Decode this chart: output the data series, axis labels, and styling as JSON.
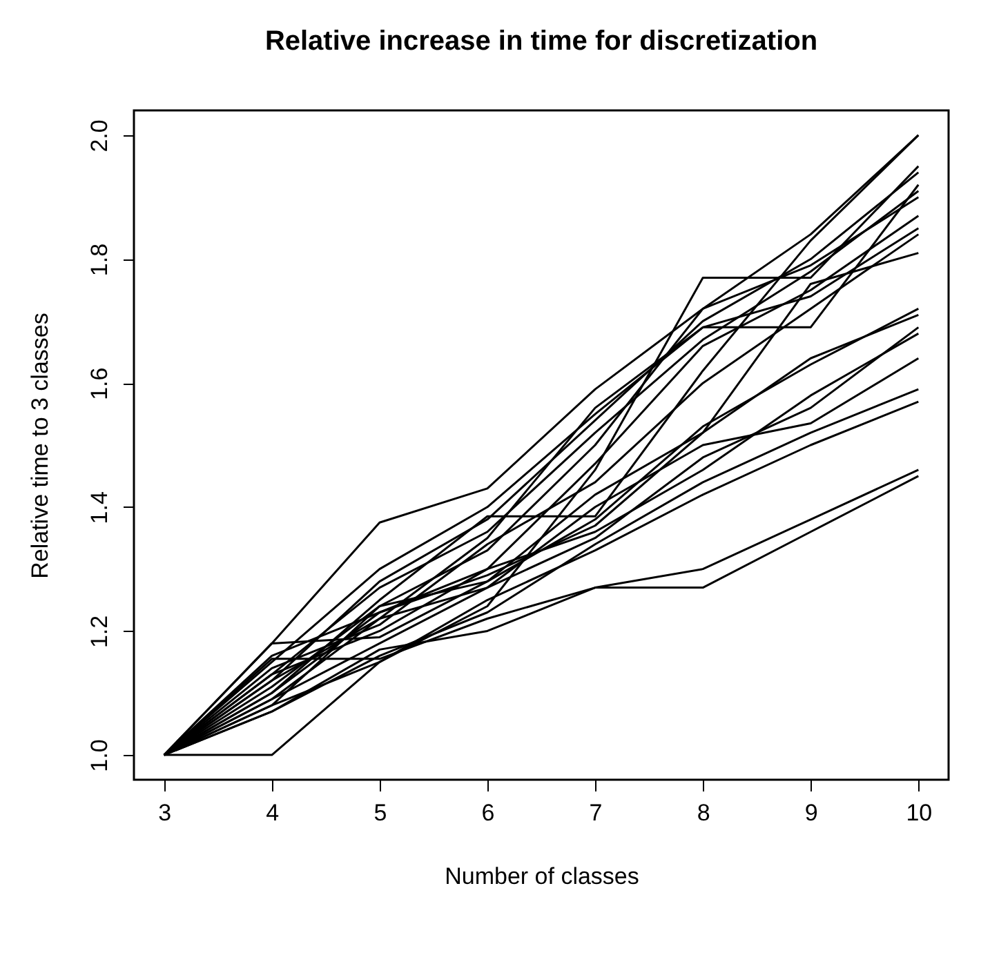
{
  "chart_data": {
    "type": "line",
    "title": "Relative increase in time for discretization",
    "xlabel": "Number of classes",
    "ylabel": "Relative time to 3 classes",
    "x": [
      3,
      4,
      5,
      6,
      7,
      8,
      9,
      10
    ],
    "xlim": [
      2.72,
      10.28
    ],
    "xticks": [
      3,
      4,
      5,
      6,
      7,
      8,
      9,
      10
    ],
    "ylim": [
      0.96,
      2.04
    ],
    "yticks": [
      {
        "value": 1,
        "label": "1.0"
      },
      {
        "value": 1.2,
        "label": "1.2"
      },
      {
        "value": 1.4,
        "label": "1.4"
      },
      {
        "value": 1.6,
        "label": "1.6"
      },
      {
        "value": 1.8,
        "label": "1.8"
      },
      {
        "value": 2,
        "label": "2.0"
      }
    ],
    "grid": false,
    "legend": false,
    "marker": "none",
    "line_style": "solid",
    "series": [
      {
        "color": "#000000",
        "values": [
          1,
          1.18,
          1.375,
          1.43,
          1.59,
          1.72,
          1.84,
          2.0
        ]
      },
      {
        "color": "#000000",
        "values": [
          1,
          1.0,
          1.15,
          1.24,
          1.46,
          1.77,
          1.77,
          1.95
        ]
      },
      {
        "color": "#000000",
        "values": [
          1,
          1.15,
          1.3,
          1.4,
          1.55,
          1.69,
          1.69,
          1.92
        ]
      },
      {
        "color": "#000000",
        "values": [
          1,
          1.12,
          1.28,
          1.38,
          1.54,
          1.7,
          1.8,
          1.94
        ]
      },
      {
        "color": "#000000",
        "values": [
          1,
          1.1,
          1.25,
          1.385,
          1.385,
          1.62,
          1.83,
          2.0
        ]
      },
      {
        "color": "#000000",
        "values": [
          1,
          1.13,
          1.27,
          1.36,
          1.52,
          1.67,
          1.78,
          1.91
        ]
      },
      {
        "color": "#000000",
        "values": [
          1,
          1.08,
          1.24,
          1.33,
          1.5,
          1.72,
          1.79,
          1.9
        ]
      },
      {
        "color": "#000000",
        "values": [
          1,
          1.16,
          1.23,
          1.3,
          1.47,
          1.66,
          1.75,
          1.87
        ]
      },
      {
        "color": "#000000",
        "values": [
          1,
          1.09,
          1.22,
          1.35,
          1.56,
          1.69,
          1.74,
          1.85
        ]
      },
      {
        "color": "#000000",
        "values": [
          1,
          1.14,
          1.21,
          1.34,
          1.44,
          1.6,
          1.72,
          1.84
        ]
      },
      {
        "color": "#000000",
        "values": [
          1,
          1.18,
          1.19,
          1.28,
          1.42,
          1.52,
          1.76,
          1.81
        ]
      },
      {
        "color": "#000000",
        "values": [
          1,
          1.11,
          1.24,
          1.28,
          1.38,
          1.53,
          1.63,
          1.72
        ]
      },
      {
        "color": "#000000",
        "values": [
          1,
          1.1,
          1.23,
          1.29,
          1.37,
          1.52,
          1.64,
          1.71
        ]
      },
      {
        "color": "#000000",
        "values": [
          1,
          1.12,
          1.22,
          1.27,
          1.35,
          1.48,
          1.56,
          1.69
        ]
      },
      {
        "color": "#000000",
        "values": [
          1,
          1.13,
          1.2,
          1.3,
          1.36,
          1.46,
          1.58,
          1.68
        ]
      },
      {
        "color": "#000000",
        "values": [
          1,
          1.09,
          1.18,
          1.27,
          1.4,
          1.5,
          1.535,
          1.64
        ]
      },
      {
        "color": "#000000",
        "values": [
          1,
          1.07,
          1.16,
          1.23,
          1.34,
          1.44,
          1.52,
          1.59
        ]
      },
      {
        "color": "#000000",
        "values": [
          1,
          1.08,
          1.15,
          1.25,
          1.33,
          1.42,
          1.5,
          1.57
        ]
      },
      {
        "color": "#000000",
        "values": [
          1,
          1.155,
          1.155,
          1.22,
          1.27,
          1.3,
          1.38,
          1.46
        ]
      },
      {
        "color": "#000000",
        "values": [
          1,
          1.07,
          1.17,
          1.2,
          1.27,
          1.27,
          1.36,
          1.45
        ]
      }
    ]
  }
}
